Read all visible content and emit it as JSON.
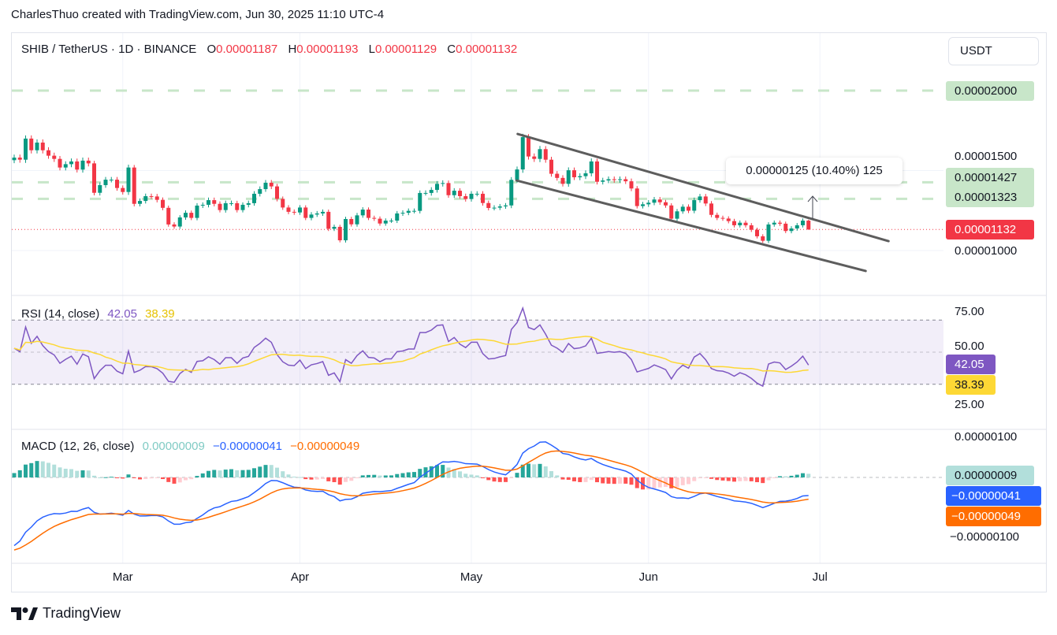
{
  "caption": "CharlesThuo created with TradingView.com, Jun 30, 2025 11:10 UTC-4",
  "legend": {
    "symbol": "SHIB / TetherUS · 1D · BINANCE",
    "o_label": "O",
    "o": "0.00001187",
    "h_label": "H",
    "h": "0.00001193",
    "l_label": "L",
    "l": "0.00001129",
    "c_label": "C",
    "c": "0.00001132"
  },
  "currency_button": "USDT",
  "price_axis": {
    "labels": [
      "0.00002000",
      "0.00001500",
      "0.00001000"
    ],
    "level_badges": [
      "0.00002000",
      "0.00001427",
      "0.00001323"
    ],
    "last_price_badge": "0.00001132"
  },
  "measure_label": "0.00000125 (10.40%) 125",
  "rsi": {
    "title": "RSI (14, close)",
    "value": "42.05",
    "signal": "38.39",
    "axis_labels": [
      "75.00",
      "50.00",
      "25.00"
    ]
  },
  "macd": {
    "title": "MACD (12, 26, close)",
    "histogram": "0.00000009",
    "macd": "−0.00000041",
    "signal": "−0.00000049",
    "axis_labels": [
      "0.00000100",
      "−0.00000100"
    ]
  },
  "time_axis": [
    {
      "label": "Mar",
      "day_index": 19
    },
    {
      "label": "Apr",
      "day_index": 50
    },
    {
      "label": "May",
      "day_index": 80
    },
    {
      "label": "Jun",
      "day_index": 111
    },
    {
      "label": "Jul",
      "day_index": 141
    }
  ],
  "brand": "TradingView",
  "colors": {
    "up": "#089981",
    "down": "#f23645",
    "level": "#c8e6c9",
    "rsi": "#7e57c2",
    "rsi_signal": "#fdd835",
    "macd": "#2962ff",
    "macd_signal": "#ff6d00",
    "hist_up": "#26a69a",
    "hist_up_weak": "#b2dfdb",
    "hist_down": "#ff5252",
    "hist_down_weak": "#ffcdd2"
  },
  "chart_data": [
    {
      "type": "candlestick",
      "title": "SHIB / TetherUS · 1D · BINANCE",
      "price_unit": "1e-8 USDT",
      "first_date": "2025-02-10",
      "last_date": "2025-06-30",
      "first_open": 1565,
      "close": [
        1581,
        1568,
        1700,
        1627,
        1675,
        1627,
        1593,
        1573,
        1519,
        1540,
        1557,
        1506,
        1562,
        1545,
        1361,
        1409,
        1443,
        1443,
        1391,
        1366,
        1519,
        1292,
        1310,
        1340,
        1338,
        1317,
        1267,
        1163,
        1150,
        1207,
        1236,
        1204,
        1281,
        1286,
        1315,
        1292,
        1253,
        1296,
        1296,
        1253,
        1286,
        1296,
        1355,
        1384,
        1424,
        1401,
        1323,
        1269,
        1242,
        1238,
        1269,
        1204,
        1225,
        1232,
        1242,
        1136,
        1148,
        1064,
        1197,
        1164,
        1220,
        1256,
        1204,
        1199,
        1169,
        1187,
        1187,
        1232,
        1236,
        1248,
        1248,
        1360,
        1360,
        1379,
        1417,
        1422,
        1346,
        1374,
        1340,
        1322,
        1355,
        1355,
        1297,
        1266,
        1268,
        1276,
        1282,
        1442,
        1507,
        1709,
        1588,
        1573,
        1634,
        1568,
        1480,
        1454,
        1417,
        1502,
        1458,
        1465,
        1483,
        1557,
        1430,
        1438,
        1446,
        1441,
        1446,
        1433,
        1388,
        1278,
        1289,
        1299,
        1319,
        1302,
        1282,
        1199,
        1245,
        1274,
        1249,
        1315,
        1338,
        1294,
        1223,
        1204,
        1200,
        1184,
        1158,
        1174,
        1158,
        1130,
        1089,
        1061,
        1163,
        1174,
        1168,
        1122,
        1138,
        1158,
        1187,
        1132
      ],
      "last_bar": {
        "open": 1187,
        "high": 1193,
        "low": 1129,
        "close": 1132
      },
      "horizontal_levels": [
        2000,
        1427,
        1323
      ],
      "last_price": 1132,
      "channel": {
        "upper": [
          [
            88.1,
            1729
          ],
          [
            153,
            1059
          ]
        ],
        "lower": [
          [
            87.9,
            1438
          ],
          [
            149,
            872
          ]
        ]
      },
      "measure": {
        "from": 1132,
        "to": 1257,
        "change": 125,
        "percent": 10.4
      },
      "ylim": [
        600,
        2150
      ]
    },
    {
      "type": "line",
      "title": "RSI (14, close)",
      "last_value": 42.05,
      "last_signal": 38.39,
      "band": [
        30,
        70
      ],
      "ylim": [
        15,
        85
      ]
    },
    {
      "type": "bar+line",
      "title": "MACD (12, 26, close)",
      "last_histogram": 9,
      "last_macd": -41,
      "last_signal": -49,
      "unit": "1e-8",
      "ylim": [
        -180,
        110
      ]
    }
  ]
}
